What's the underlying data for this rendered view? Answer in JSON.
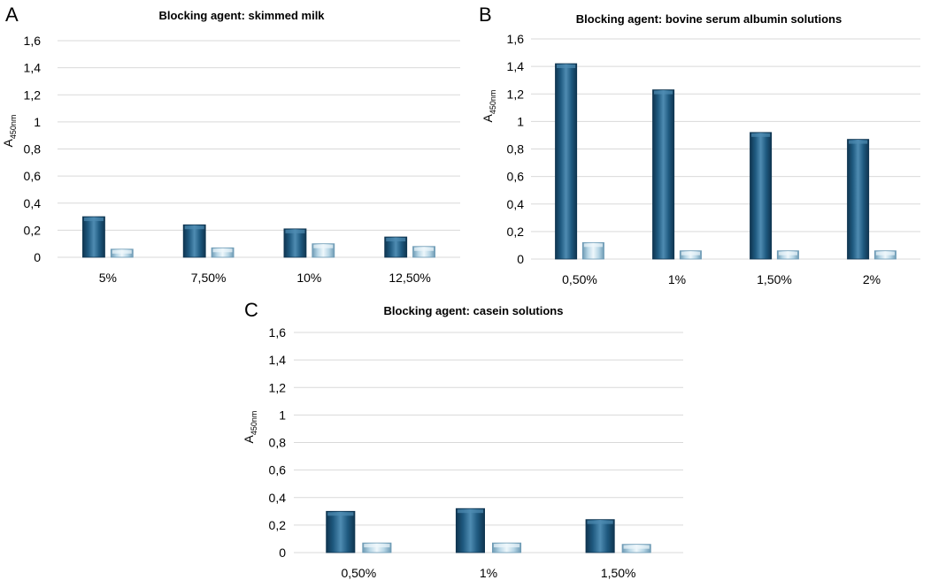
{
  "figure": {
    "panels": [
      "A",
      "B",
      "C"
    ]
  },
  "colors": {
    "series_dark": "#1f5a80",
    "series_dark_edge": "#0f3550",
    "series_dark_light": "#4f8cb2",
    "series_light": "#b7d6e6",
    "series_light_edge": "#6d9ab4",
    "series_light_light": "#eef7fb",
    "grid": "#d9d9d9"
  },
  "chart_data": [
    {
      "panel": "A",
      "type": "bar",
      "title": "Blocking agent: skimmed milk",
      "ylabel_main": "A",
      "ylabel_sub": "450nm",
      "xlabel": "",
      "ylim": [
        0,
        1.6
      ],
      "yticks": [
        "0",
        "0,2",
        "0,4",
        "0,6",
        "0,8",
        "1",
        "1,2",
        "1,4",
        "1,6"
      ],
      "categories": [
        "5%",
        "7,50%",
        "10%",
        "12,50%"
      ],
      "series": [
        {
          "name": "series 1",
          "values": [
            0.3,
            0.24,
            0.21,
            0.15
          ]
        },
        {
          "name": "series 2",
          "values": [
            0.06,
            0.07,
            0.1,
            0.08
          ]
        }
      ]
    },
    {
      "panel": "B",
      "type": "bar",
      "title": "Blocking agent: bovine serum albumin solutions",
      "ylabel_main": "A",
      "ylabel_sub": "450nm",
      "xlabel": "",
      "ylim": [
        0,
        1.6
      ],
      "yticks": [
        "0",
        "0,2",
        "0,4",
        "0,6",
        "0,8",
        "1",
        "1,2",
        "1,4",
        "1,6"
      ],
      "categories": [
        "0,50%",
        "1%",
        "1,50%",
        "2%"
      ],
      "series": [
        {
          "name": "series 1",
          "values": [
            1.42,
            1.23,
            0.92,
            0.87
          ]
        },
        {
          "name": "series 2",
          "values": [
            0.12,
            0.06,
            0.06,
            0.06
          ]
        }
      ]
    },
    {
      "panel": "C",
      "type": "bar",
      "title": "Blocking agent: casein solutions",
      "ylabel_main": "A",
      "ylabel_sub": "450nm",
      "xlabel": "",
      "ylim": [
        0,
        1.6
      ],
      "yticks": [
        "0",
        "0,2",
        "0,4",
        "0,6",
        "0,8",
        "1",
        "1,2",
        "1,4",
        "1,6"
      ],
      "categories": [
        "0,50%",
        "1%",
        "1,50%"
      ],
      "series": [
        {
          "name": "series 1",
          "values": [
            0.3,
            0.32,
            0.24
          ]
        },
        {
          "name": "series 2",
          "values": [
            0.07,
            0.07,
            0.06
          ]
        }
      ]
    }
  ]
}
